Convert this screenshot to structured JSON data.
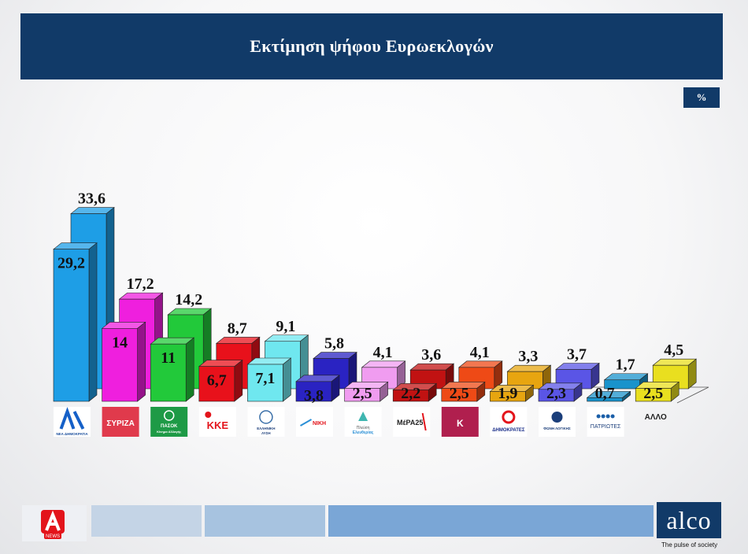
{
  "header": {
    "title": "Εκτίμηση ψήφου Ευρωεκλογών"
  },
  "unit_label": "%",
  "colors": {
    "header_bg": "#113a68",
    "nd": "#1e9ee6",
    "syriza": "#ef1fde",
    "pasok": "#22c93a",
    "kke": "#e8111b",
    "ell_lysi": "#6fe7ef",
    "niki": "#2a23c2",
    "pleusi": "#f09cf0",
    "mera25": "#c11212",
    "kinisi": "#ee4a16",
    "dimokrates": "#e7a510",
    "fonis": "#5a55e6",
    "patriotes": "#1993cc",
    "allo": "#e9df1f"
  },
  "chart_data": {
    "type": "bar",
    "categories": [
      "ΝΕΑ ΔΗΜΟΚΡΑΤΙΑ",
      "ΣΥΡΙΖΑ",
      "ΠΑΣΟΚ Κίνημα Αλλαγής",
      "ΚΚΕ",
      "ΕΛΛΗΝΙΚΗ ΛΥΣΗ",
      "ΝΙΚΗ",
      "Πλεύση Ελευθερίας",
      "ΜέΡΑ25",
      "Κ",
      "ΔΗΜΟΚΡΑΤΕΣ",
      "ΦΩΝΗ ΛΟΓΙΚΗΣ",
      "ΠΑΤΡΙΩΤΕΣ",
      "ΑΛΛΟ"
    ],
    "series": [
      {
        "values": [
          29.2,
          14,
          11,
          6.7,
          7.1,
          3.8,
          2.5,
          2.2,
          2.5,
          1.9,
          2.3,
          0.7,
          2.5
        ]
      },
      {
        "values": [
          33.6,
          17.2,
          14.2,
          8.7,
          9.1,
          5.8,
          4.1,
          3.6,
          4.1,
          3.3,
          3.7,
          1.7,
          4.5
        ]
      }
    ],
    "labels_front": [
      "29,2",
      "14",
      "11",
      "6,7",
      "7,1",
      "3,8",
      "2,5",
      "2,2",
      "2,5",
      "1,9",
      "2,3",
      "0,7",
      "2,5"
    ],
    "labels_back": [
      "33,6",
      "17,2",
      "14,2",
      "8,7",
      "9,1",
      "5,8",
      "4,1",
      "3,6",
      "4,1",
      "3,3",
      "3,7",
      "1,7",
      "4,5"
    ],
    "legend_text": {
      "nd": [
        "ΝΕΑ ΔΗΜΟΚΡΑΤΙΑ"
      ],
      "syriza": [
        "ΣΥΡΙΖΑ"
      ],
      "pasok": [
        "ΠΑΣΟΚ",
        "Κίνημα Αλλαγής"
      ],
      "kke": [
        "ΚΚΕ"
      ],
      "ell_lysi": [
        "ΕΛΛΗΝΙΚΗ",
        "ΛΥΣΗ"
      ],
      "niki": [
        "ΝΙΚΗ"
      ],
      "pleusi": [
        "Πλεύση",
        "Ελευθερίας"
      ],
      "mera25": [
        "ΜέΡΑ25"
      ],
      "kinisi": [
        "Κ"
      ],
      "dimokrates": [
        "ΔΗΜΟΚΡΑΤΕΣ"
      ],
      "fonis": [
        "ΦΩΝΗ ΛΟΓΙΚΗΣ"
      ],
      "patriotes": [
        "ΠΑΤΡΙΩΤΕΣ"
      ],
      "allo": [
        "ΑΛΛΟ"
      ]
    },
    "grid": false,
    "legend": "bottom"
  },
  "footer": {
    "left_logo_text": "NEWS",
    "brand": "alco",
    "tagline": "The pulse of society"
  }
}
